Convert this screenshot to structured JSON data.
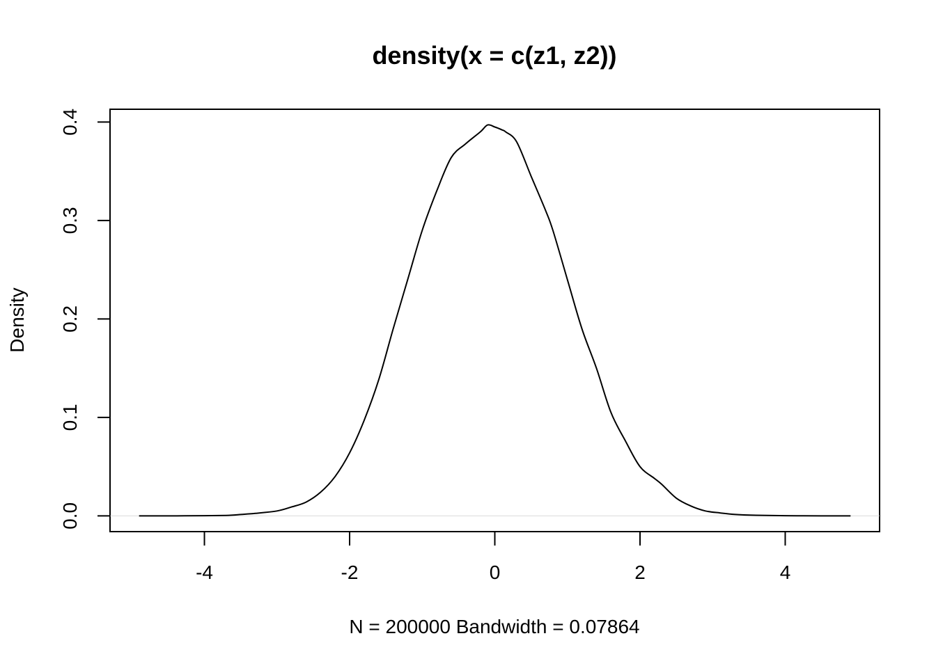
{
  "chart_data": {
    "type": "line",
    "title": "density(x = c(z1, z2))",
    "xlabel": "N = 200000   Bandwidth = 0.07864",
    "ylabel": "Density",
    "xlim": [
      -5.3,
      5.3
    ],
    "ylim": [
      -0.016,
      0.413
    ],
    "x_ticks": [
      -4,
      -2,
      0,
      2,
      4
    ],
    "x_tick_labels": [
      "-4",
      "-2",
      "0",
      "2",
      "4"
    ],
    "y_ticks": [
      0.0,
      0.1,
      0.2,
      0.3,
      0.4
    ],
    "y_tick_labels": [
      "0.0",
      "0.1",
      "0.2",
      "0.3",
      "0.4"
    ],
    "baseline": 0,
    "grid": false,
    "colors": {
      "line": "#000000",
      "baseline": "#d9d9d9",
      "frame": "#000000"
    },
    "series": [
      {
        "x": [
          -4.9,
          -4.5,
          -4.0,
          -3.7,
          -3.5,
          -3.3,
          -3.0,
          -2.8,
          -2.6,
          -2.4,
          -2.2,
          -2.0,
          -1.8,
          -1.6,
          -1.4,
          -1.2,
          -1.0,
          -0.8,
          -0.6,
          -0.4,
          -0.2,
          -0.1,
          0.0,
          0.1,
          0.15,
          0.3,
          0.5,
          0.7,
          0.8,
          1.0,
          1.2,
          1.4,
          1.6,
          1.8,
          2.0,
          2.2,
          2.3,
          2.5,
          2.7,
          2.9,
          3.1,
          3.3,
          3.6,
          4.0,
          4.5,
          4.9
        ],
        "y": [
          0.0,
          0.0,
          0.0002,
          0.0005,
          0.0014,
          0.0025,
          0.005,
          0.009,
          0.014,
          0.024,
          0.04,
          0.064,
          0.097,
          0.138,
          0.19,
          0.24,
          0.29,
          0.33,
          0.364,
          0.378,
          0.39,
          0.397,
          0.395,
          0.392,
          0.39,
          0.38,
          0.345,
          0.31,
          0.29,
          0.24,
          0.19,
          0.15,
          0.105,
          0.076,
          0.05,
          0.038,
          0.032,
          0.018,
          0.01,
          0.005,
          0.003,
          0.0015,
          0.0006,
          0.0002,
          0.0,
          0.0
        ]
      }
    ]
  }
}
